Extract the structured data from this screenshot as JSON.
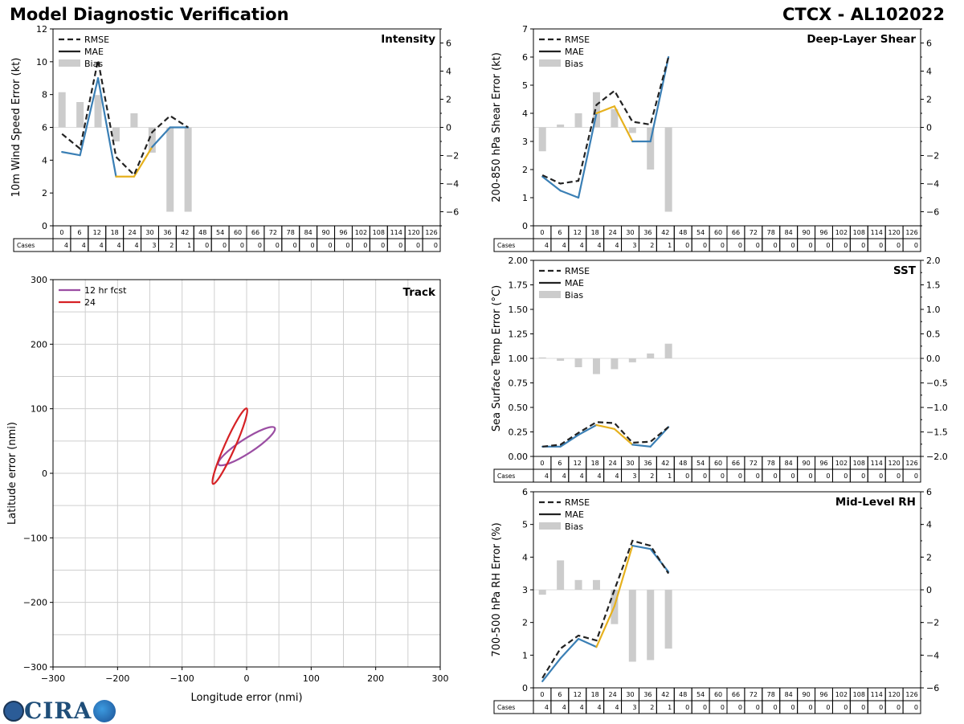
{
  "header": {
    "title": "Model Diagnostic Verification",
    "storm": "CTCX - AL102022"
  },
  "logo": {
    "text": "CIRA"
  },
  "colors": {
    "rmse": "#222222",
    "mae_early": "#3a7fb5",
    "mae_mid": "#e6b11e",
    "bias": "#cccccc",
    "track12": "#9b4ea3",
    "track24": "#d62125"
  },
  "table": {
    "cases_label": "Cases",
    "hours": [
      "0",
      "6",
      "12",
      "18",
      "24",
      "30",
      "36",
      "42",
      "48",
      "54",
      "60",
      "66",
      "72",
      "78",
      "84",
      "90",
      "96",
      "102",
      "108",
      "114",
      "120",
      "126"
    ],
    "cases": [
      "4",
      "4",
      "4",
      "4",
      "4",
      "3",
      "2",
      "1",
      "0",
      "0",
      "0",
      "0",
      "0",
      "0",
      "0",
      "0",
      "0",
      "0",
      "0",
      "0",
      "0",
      "0"
    ]
  },
  "legend": {
    "rmse": "RMSE",
    "mae": "MAE",
    "bias": "Bias"
  },
  "chart_data": [
    {
      "id": "intensity",
      "type": "line",
      "title": "Intensity",
      "ylabel": "10m Wind Speed Error (kt)",
      "ylim": [
        0,
        12
      ],
      "yticks": [
        "0",
        "2",
        "4",
        "6",
        "8",
        "10",
        "12"
      ],
      "y2lim": [
        -7,
        7
      ],
      "y2ticks": [
        "−6",
        "−4",
        "−2",
        "0",
        "2",
        "4",
        "6"
      ],
      "x": [
        0,
        6,
        12,
        18,
        24,
        30,
        36,
        42
      ],
      "rmse": [
        5.6,
        4.7,
        10.1,
        4.2,
        3.1,
        5.7,
        6.7,
        6.0
      ],
      "mae": [
        4.5,
        4.3,
        9.0,
        3.0,
        3.0,
        4.8,
        6.0,
        6.0
      ],
      "bias": [
        2.5,
        1.8,
        2.3,
        -1.0,
        1.0,
        -1.8,
        -6.0,
        -6.0
      ]
    },
    {
      "id": "shear",
      "type": "line",
      "title": "Deep-Layer Shear",
      "ylabel": "200-850 hPa Shear Error (kt)",
      "ylim": [
        0,
        7
      ],
      "yticks": [
        "0",
        "1",
        "2",
        "3",
        "4",
        "5",
        "6",
        "7"
      ],
      "y2lim": [
        -7,
        7
      ],
      "y2ticks": [
        "−6",
        "−4",
        "−2",
        "0",
        "2",
        "4",
        "6"
      ],
      "x": [
        0,
        6,
        12,
        18,
        24,
        30,
        36,
        42
      ],
      "rmse": [
        1.8,
        1.5,
        1.6,
        4.3,
        4.8,
        3.7,
        3.6,
        6.0
      ],
      "mae": [
        1.75,
        1.25,
        1.0,
        4.0,
        4.25,
        3.0,
        3.0,
        6.0
      ],
      "bias": [
        -1.7,
        0.2,
        1.0,
        2.5,
        1.3,
        -0.4,
        -3.0,
        -6.0
      ]
    },
    {
      "id": "sst",
      "type": "line",
      "title": "SST",
      "ylabel": "Sea Surface Temp Error (°C)",
      "ylim": [
        0,
        2
      ],
      "yticks": [
        "0.00",
        "0.25",
        "0.50",
        "0.75",
        "1.00",
        "1.25",
        "1.50",
        "1.75",
        "2.00"
      ],
      "y2lim": [
        -2,
        2
      ],
      "y2ticks": [
        "−2.0",
        "−1.5",
        "−1.0",
        "−0.5",
        "0.0",
        "0.5",
        "1.0",
        "1.5",
        "2.0"
      ],
      "x": [
        0,
        6,
        12,
        18,
        24,
        30,
        36,
        42
      ],
      "rmse": [
        0.1,
        0.12,
        0.24,
        0.35,
        0.34,
        0.14,
        0.15,
        0.3
      ],
      "mae": [
        0.1,
        0.1,
        0.22,
        0.32,
        0.28,
        0.12,
        0.1,
        0.3
      ],
      "bias": [
        0.02,
        -0.05,
        -0.18,
        -0.32,
        -0.22,
        -0.08,
        0.1,
        0.3
      ]
    },
    {
      "id": "rh",
      "type": "line",
      "title": "Mid-Level RH",
      "ylabel": "700-500 hPa RH Error (%)",
      "ylim": [
        0,
        6
      ],
      "yticks": [
        "0",
        "1",
        "2",
        "3",
        "4",
        "5",
        "6"
      ],
      "y2lim": [
        -6,
        6
      ],
      "y2ticks": [
        "−6",
        "−4",
        "−2",
        "0",
        "2",
        "4",
        "6"
      ],
      "x": [
        0,
        6,
        12,
        18,
        24,
        30,
        36,
        42
      ],
      "rmse": [
        0.3,
        1.2,
        1.6,
        1.45,
        3.0,
        4.5,
        4.35,
        3.5
      ],
      "mae": [
        0.2,
        0.9,
        1.5,
        1.25,
        2.5,
        4.35,
        4.25,
        3.55
      ],
      "bias": [
        -0.3,
        1.8,
        0.6,
        0.6,
        -2.1,
        -4.4,
        -4.3,
        -3.6
      ]
    },
    {
      "id": "track",
      "type": "line",
      "title": "Track",
      "xlabel": "Longitude error (nmi)",
      "ylabel": "Latitude error (nmi)",
      "xlim": [
        -300,
        300
      ],
      "ylim": [
        -300,
        300
      ],
      "xticks": [
        "−300",
        "−200",
        "−100",
        "0",
        "100",
        "200",
        "300"
      ],
      "yticks": [
        "−300",
        "−200",
        "−100",
        "0",
        "100",
        "200",
        "300"
      ],
      "series": [
        {
          "name": "12 hr fcst",
          "center": [
            0,
            42
          ],
          "a": 52,
          "b": 11,
          "angle": 33
        },
        {
          "name": "24",
          "center": [
            -26,
            42
          ],
          "a": 64,
          "b": 8,
          "angle": 66
        }
      ]
    }
  ]
}
